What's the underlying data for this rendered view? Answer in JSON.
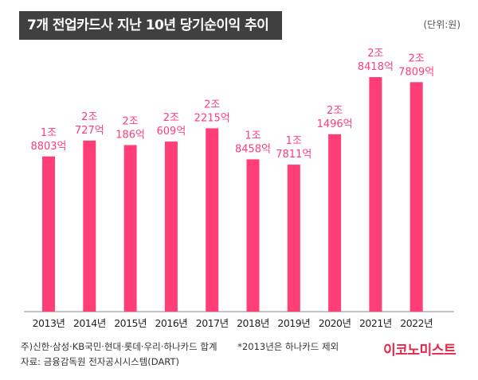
{
  "header": {
    "title": "7개 전업카드사 지난 10년 당기순이익 추이",
    "unit": "(단위:원)"
  },
  "colors": {
    "bar": "#ff3e78",
    "label": "#ff3e78",
    "title_bg": "#404040",
    "brand": "#e8254a"
  },
  "chart_data": {
    "type": "bar",
    "categories": [
      "2013년",
      "2014년",
      "2015년",
      "2016년",
      "2017년",
      "2018년",
      "2019년",
      "2020년",
      "2021년",
      "2022년"
    ],
    "values": [
      1880300000000,
      2072700000000,
      2018600000000,
      2060900000000,
      2221500000000,
      1845800000000,
      1781100000000,
      2149600000000,
      2841800000000,
      2780900000000
    ],
    "data_labels": [
      [
        "1조",
        "8803억"
      ],
      [
        "2조",
        "727억"
      ],
      [
        "2조",
        "186억"
      ],
      [
        "2조",
        "609억"
      ],
      [
        "2조",
        "2215억"
      ],
      [
        "1조",
        "8458억"
      ],
      [
        "1조",
        "7811억"
      ],
      [
        "2조",
        "1496억"
      ],
      [
        "2조",
        "8418억"
      ],
      [
        "2조",
        "7809억"
      ]
    ],
    "title": "7개 전업카드사 지난 10년 당기순이익 추이",
    "xlabel": "",
    "ylabel": "",
    "grid": false
  },
  "footer": {
    "source_companies": "주)신한·삼성·KB국민·현대·롯데·우리·하나카드 합계",
    "note": "*2013년은 하나카드 제외",
    "source": "자료: 금융감독원 전자공시시스템(DART)"
  },
  "brand": "이코노미스트"
}
